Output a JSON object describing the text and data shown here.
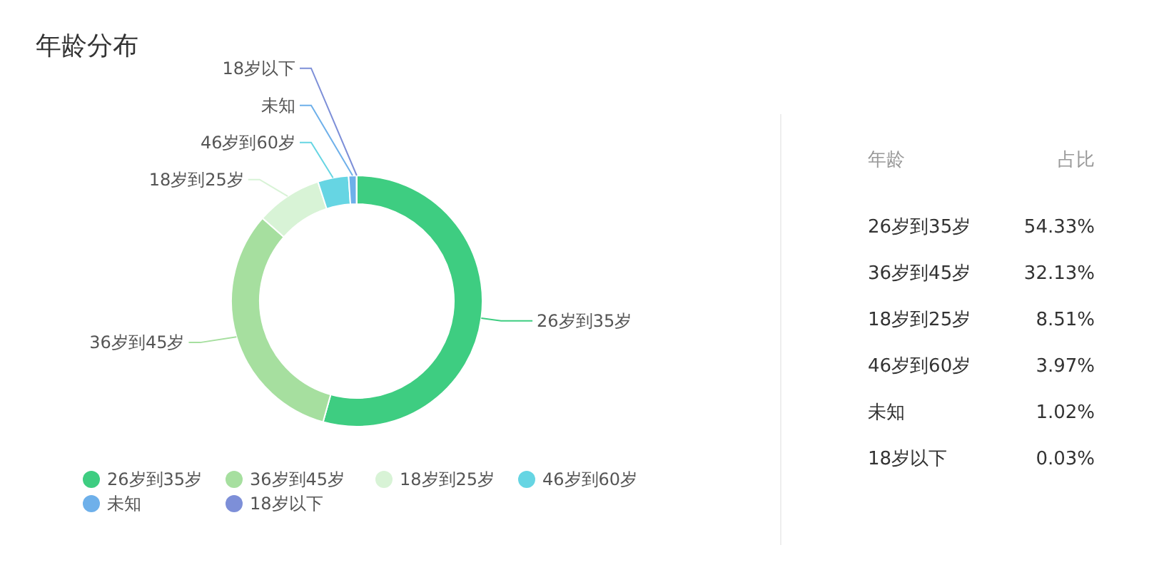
{
  "chart_data": {
    "type": "donut",
    "title": "年龄分布",
    "categories": [
      "26岁到35岁",
      "36岁到45岁",
      "18岁到25岁",
      "46岁到60岁",
      "未知",
      "18岁以下"
    ],
    "values": [
      54.33,
      32.13,
      8.51,
      3.97,
      1.02,
      0.03
    ],
    "colors": [
      "#3ecd81",
      "#a6df9f",
      "#d8f3d6",
      "#66d5e3",
      "#6eb0ea",
      "#7d8fd8"
    ],
    "annotations": [
      "年龄",
      "占比",
      "54.33%",
      "32.13%",
      "8.51%",
      "3.97%",
      "1.02%",
      "0.03%"
    ],
    "legend": "bottom"
  }
}
